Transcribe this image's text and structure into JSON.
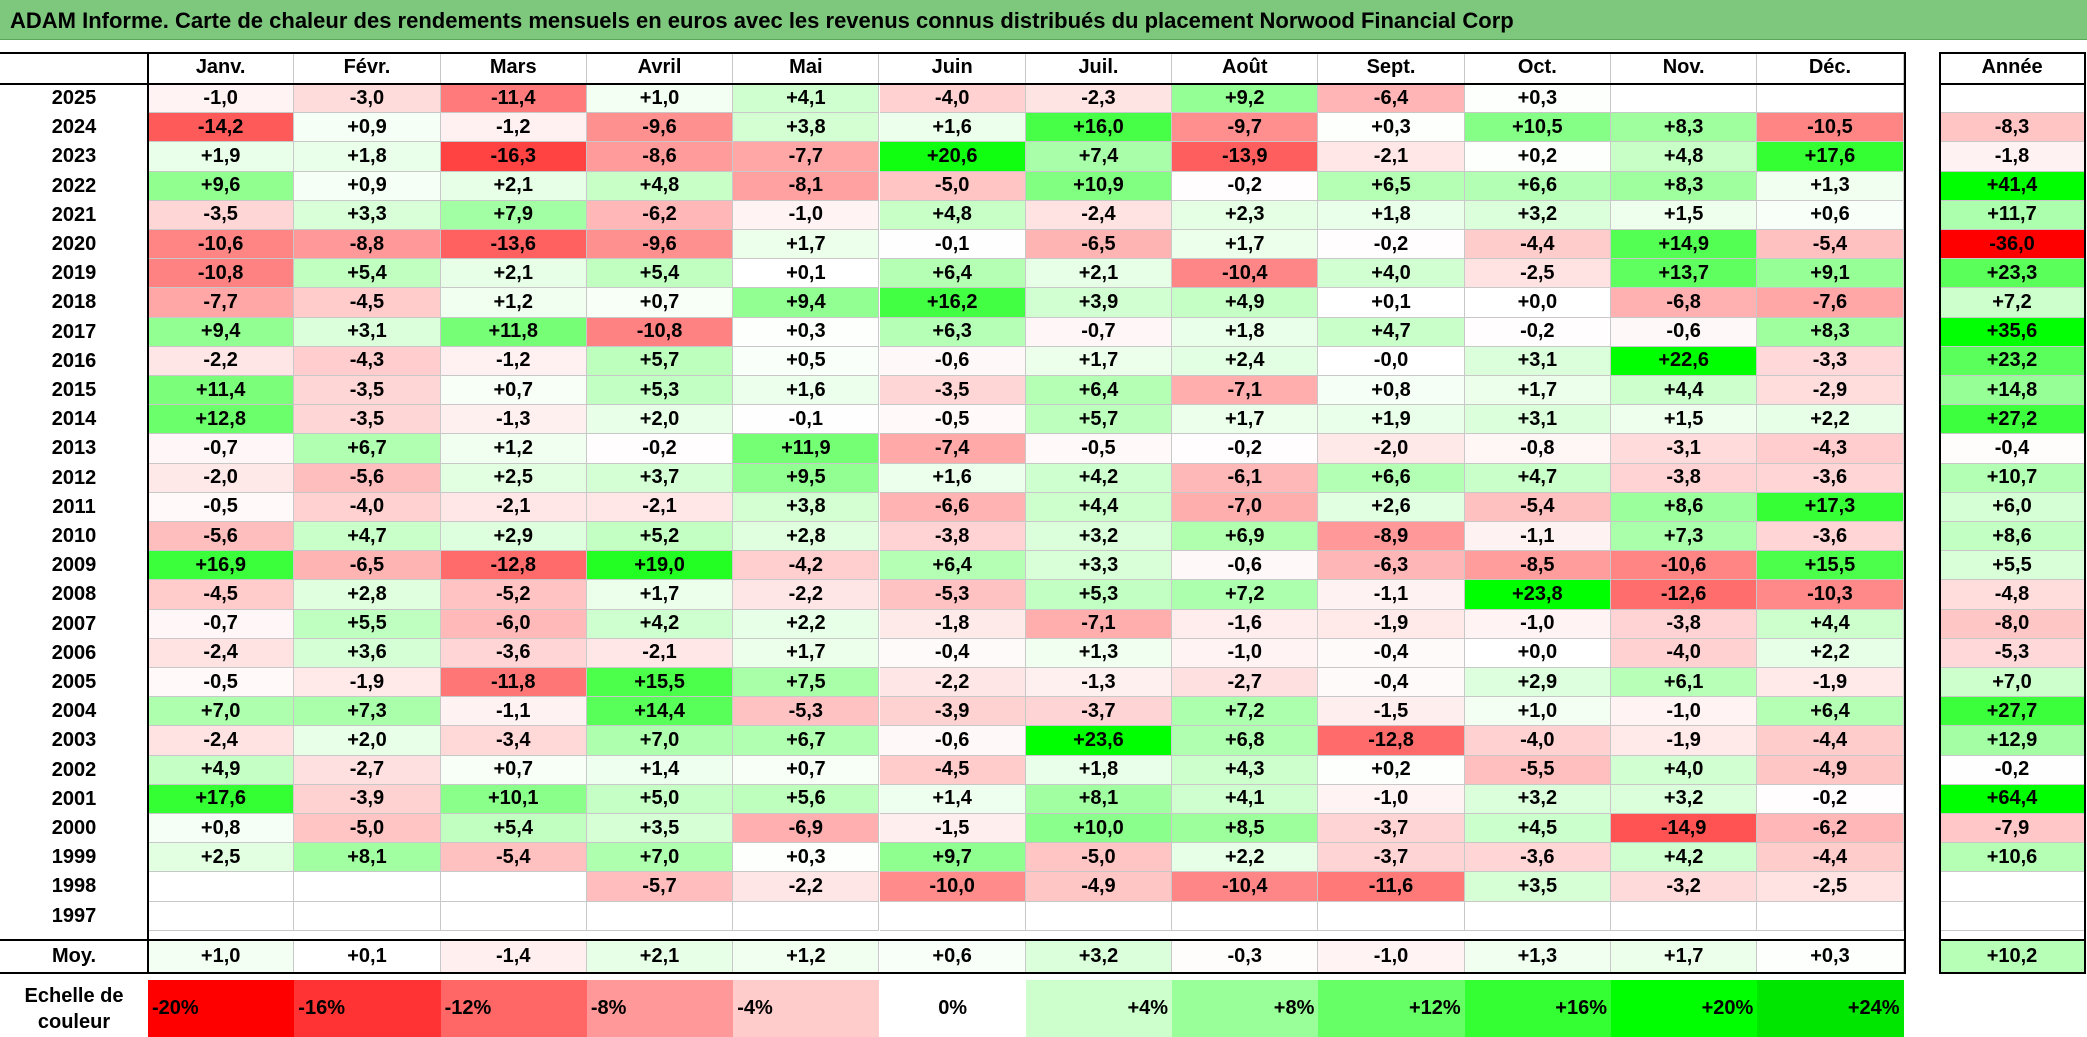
{
  "chart_data": {
    "type": "heatmap",
    "title": "ADAM Informe. Carte de chaleur des rendements mensuels en euros avec les revenus connus distribués du placement Norwood Financial Corp",
    "columns": [
      "Janv.",
      "Févr.",
      "Mars",
      "Avril",
      "Mai",
      "Juin",
      "Juil.",
      "Août",
      "Sept.",
      "Oct.",
      "Nov.",
      "Déc."
    ],
    "annual_header": "Année",
    "rows": [
      {
        "year": "2025",
        "values": [
          "-1,0",
          "-3,0",
          "-11,4",
          "+1,0",
          "+4,1",
          "-4,0",
          "-2,3",
          "+9,2",
          "-6,4",
          "+0,3",
          "",
          ""
        ],
        "annual": ""
      },
      {
        "year": "2024",
        "values": [
          "-14,2",
          "+0,9",
          "-1,2",
          "-9,6",
          "+3,8",
          "+1,6",
          "+16,0",
          "-9,7",
          "+0,3",
          "+10,5",
          "+8,3",
          "-10,5"
        ],
        "annual": "-8,3"
      },
      {
        "year": "2023",
        "values": [
          "+1,9",
          "+1,8",
          "-16,3",
          "-8,6",
          "-7,7",
          "+20,6",
          "+7,4",
          "-13,9",
          "-2,1",
          "+0,2",
          "+4,8",
          "+17,6"
        ],
        "annual": "-1,8"
      },
      {
        "year": "2022",
        "values": [
          "+9,6",
          "+0,9",
          "+2,1",
          "+4,8",
          "-8,1",
          "-5,0",
          "+10,9",
          "-0,2",
          "+6,5",
          "+6,6",
          "+8,3",
          "+1,3"
        ],
        "annual": "+41,4"
      },
      {
        "year": "2021",
        "values": [
          "-3,5",
          "+3,3",
          "+7,9",
          "-6,2",
          "-1,0",
          "+4,8",
          "-2,4",
          "+2,3",
          "+1,8",
          "+3,2",
          "+1,5",
          "+0,6"
        ],
        "annual": "+11,7"
      },
      {
        "year": "2020",
        "values": [
          "-10,6",
          "-8,8",
          "-13,6",
          "-9,6",
          "+1,7",
          "-0,1",
          "-6,5",
          "+1,7",
          "-0,2",
          "-4,4",
          "+14,9",
          "-5,4"
        ],
        "annual": "-36,0"
      },
      {
        "year": "2019",
        "values": [
          "-10,8",
          "+5,4",
          "+2,1",
          "+5,4",
          "+0,1",
          "+6,4",
          "+2,1",
          "-10,4",
          "+4,0",
          "-2,5",
          "+13,7",
          "+9,1"
        ],
        "annual": "+23,3"
      },
      {
        "year": "2018",
        "values": [
          "-7,7",
          "-4,5",
          "+1,2",
          "+0,7",
          "+9,4",
          "+16,2",
          "+3,9",
          "+4,9",
          "+0,1",
          "+0,0",
          "-6,8",
          "-7,6"
        ],
        "annual": "+7,2"
      },
      {
        "year": "2017",
        "values": [
          "+9,4",
          "+3,1",
          "+11,8",
          "-10,8",
          "+0,3",
          "+6,3",
          "-0,7",
          "+1,8",
          "+4,7",
          "-0,2",
          "-0,6",
          "+8,3"
        ],
        "annual": "+35,6"
      },
      {
        "year": "2016",
        "values": [
          "-2,2",
          "-4,3",
          "-1,2",
          "+5,7",
          "+0,5",
          "-0,6",
          "+1,7",
          "+2,4",
          "-0,0",
          "+3,1",
          "+22,6",
          "-3,3"
        ],
        "annual": "+23,2"
      },
      {
        "year": "2015",
        "values": [
          "+11,4",
          "-3,5",
          "+0,7",
          "+5,3",
          "+1,6",
          "-3,5",
          "+6,4",
          "-7,1",
          "+0,8",
          "+1,7",
          "+4,4",
          "-2,9"
        ],
        "annual": "+14,8"
      },
      {
        "year": "2014",
        "values": [
          "+12,8",
          "-3,5",
          "-1,3",
          "+2,0",
          "-0,1",
          "-0,5",
          "+5,7",
          "+1,7",
          "+1,9",
          "+3,1",
          "+1,5",
          "+2,2"
        ],
        "annual": "+27,2"
      },
      {
        "year": "2013",
        "values": [
          "-0,7",
          "+6,7",
          "+1,2",
          "-0,2",
          "+11,9",
          "-7,4",
          "-0,5",
          "-0,2",
          "-2,0",
          "-0,8",
          "-3,1",
          "-4,3"
        ],
        "annual": "-0,4"
      },
      {
        "year": "2012",
        "values": [
          "-2,0",
          "-5,6",
          "+2,5",
          "+3,7",
          "+9,5",
          "+1,6",
          "+4,2",
          "-6,1",
          "+6,6",
          "+4,7",
          "-3,8",
          "-3,6"
        ],
        "annual": "+10,7"
      },
      {
        "year": "2011",
        "values": [
          "-0,5",
          "-4,0",
          "-2,1",
          "-2,1",
          "+3,8",
          "-6,6",
          "+4,4",
          "-7,0",
          "+2,6",
          "-5,4",
          "+8,6",
          "+17,3"
        ],
        "annual": "+6,0"
      },
      {
        "year": "2010",
        "values": [
          "-5,6",
          "+4,7",
          "+2,9",
          "+5,2",
          "+2,8",
          "-3,8",
          "+3,2",
          "+6,9",
          "-8,9",
          "-1,1",
          "+7,3",
          "-3,6"
        ],
        "annual": "+8,6"
      },
      {
        "year": "2009",
        "values": [
          "+16,9",
          "-6,5",
          "-12,8",
          "+19,0",
          "-4,2",
          "+6,4",
          "+3,3",
          "-0,6",
          "-6,3",
          "-8,5",
          "-10,6",
          "+15,5"
        ],
        "annual": "+5,5"
      },
      {
        "year": "2008",
        "values": [
          "-4,5",
          "+2,8",
          "-5,2",
          "+1,7",
          "-2,2",
          "-5,3",
          "+5,3",
          "+7,2",
          "-1,1",
          "+23,8",
          "-12,6",
          "-10,3"
        ],
        "annual": "-4,8"
      },
      {
        "year": "2007",
        "values": [
          "-0,7",
          "+5,5",
          "-6,0",
          "+4,2",
          "+2,2",
          "-1,8",
          "-7,1",
          "-1,6",
          "-1,9",
          "-1,0",
          "-3,8",
          "+4,4"
        ],
        "annual": "-8,0"
      },
      {
        "year": "2006",
        "values": [
          "-2,4",
          "+3,6",
          "-3,6",
          "-2,1",
          "+1,7",
          "-0,4",
          "+1,3",
          "-1,0",
          "-0,4",
          "+0,0",
          "-4,0",
          "+2,2"
        ],
        "annual": "-5,3"
      },
      {
        "year": "2005",
        "values": [
          "-0,5",
          "-1,9",
          "-11,8",
          "+15,5",
          "+7,5",
          "-2,2",
          "-1,3",
          "-2,7",
          "-0,4",
          "+2,9",
          "+6,1",
          "-1,9"
        ],
        "annual": "+7,0"
      },
      {
        "year": "2004",
        "values": [
          "+7,0",
          "+7,3",
          "-1,1",
          "+14,4",
          "-5,3",
          "-3,9",
          "-3,7",
          "+7,2",
          "-1,5",
          "+1,0",
          "-1,0",
          "+6,4"
        ],
        "annual": "+27,7"
      },
      {
        "year": "2003",
        "values": [
          "-2,4",
          "+2,0",
          "-3,4",
          "+7,0",
          "+6,7",
          "-0,6",
          "+23,6",
          "+6,8",
          "-12,8",
          "-4,0",
          "-1,9",
          "-4,4"
        ],
        "annual": "+12,9"
      },
      {
        "year": "2002",
        "values": [
          "+4,9",
          "-2,7",
          "+0,7",
          "+1,4",
          "+0,7",
          "-4,5",
          "+1,8",
          "+4,3",
          "+0,2",
          "-5,5",
          "+4,0",
          "-4,9"
        ],
        "annual": "-0,2"
      },
      {
        "year": "2001",
        "values": [
          "+17,6",
          "-3,9",
          "+10,1",
          "+5,0",
          "+5,6",
          "+1,4",
          "+8,1",
          "+4,1",
          "-1,0",
          "+3,2",
          "+3,2",
          "-0,2"
        ],
        "annual": "+64,4"
      },
      {
        "year": "2000",
        "values": [
          "+0,8",
          "-5,0",
          "+5,4",
          "+3,5",
          "-6,9",
          "-1,5",
          "+10,0",
          "+8,5",
          "-3,7",
          "+4,5",
          "-14,9",
          "-6,2"
        ],
        "annual": "-7,9"
      },
      {
        "year": "1999",
        "values": [
          "+2,5",
          "+8,1",
          "-5,4",
          "+7,0",
          "+0,3",
          "+9,7",
          "-5,0",
          "+2,2",
          "-3,7",
          "-3,6",
          "+4,2",
          "-4,4"
        ],
        "annual": "+10,6"
      },
      {
        "year": "1998",
        "values": [
          "",
          "",
          "",
          "-5,7",
          "-2,2",
          "-10,0",
          "-4,9",
          "-10,4",
          "-11,6",
          "+3,5",
          "-3,2",
          "-2,5"
        ],
        "annual": ""
      },
      {
        "year": "1997",
        "values": [
          "",
          "",
          "",
          "",
          "",
          "",
          "",
          "",
          "",
          "",
          "",
          ""
        ],
        "annual": ""
      }
    ],
    "average": {
      "label": "Moy.",
      "values": [
        "+1,0",
        "+0,1",
        "-1,4",
        "+2,1",
        "+1,2",
        "+0,6",
        "+3,2",
        "-0,3",
        "-1,0",
        "+1,3",
        "+1,7",
        "+0,3"
      ],
      "annual": "+10,2"
    },
    "scale": {
      "label": "Echelle de couleur",
      "steps": [
        {
          "label": "-20%",
          "color": "#ff0000"
        },
        {
          "label": "-16%",
          "color": "#ff3333"
        },
        {
          "label": "-12%",
          "color": "#ff6666"
        },
        {
          "label": "-8%",
          "color": "#ff9999"
        },
        {
          "label": "-4%",
          "color": "#ffcccc"
        },
        {
          "label": "0%",
          "color": "#ffffff"
        },
        {
          "label": "+4%",
          "color": "#ccffcc"
        },
        {
          "label": "+8%",
          "color": "#99ff99"
        },
        {
          "label": "+12%",
          "color": "#66ff66"
        },
        {
          "label": "+16%",
          "color": "#33ff33"
        },
        {
          "label": "+20%",
          "color": "#00ff00"
        },
        {
          "label": "+24%",
          "color": "#00e600"
        }
      ]
    }
  },
  "colors": {
    "title_bg": "#7ec87e",
    "neg_full": "#ff0000",
    "pos_full": "#00ff00",
    "neutral": "#ffffff"
  }
}
